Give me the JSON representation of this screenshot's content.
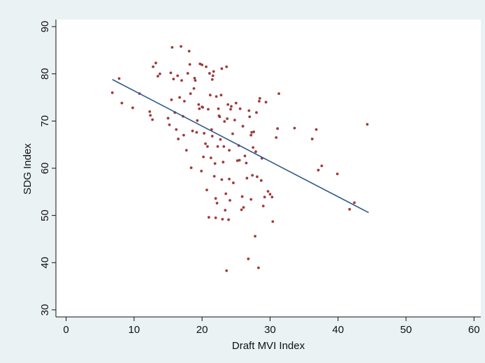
{
  "chart_data": {
    "type": "scatter",
    "title": "",
    "xlabel": "Draft MVI Index",
    "ylabel": "SDG Index",
    "xlim": [
      -1.5,
      61
    ],
    "ylim": [
      28.5,
      91.5
    ],
    "xticks": [
      0,
      10,
      20,
      30,
      40,
      50,
      60
    ],
    "yticks": [
      30,
      40,
      50,
      60,
      70,
      80,
      90
    ],
    "grid": false,
    "legend": "none",
    "colors": {
      "background": "#eaf2f3",
      "plot_area": "#ffffff",
      "points": "#a03a3a",
      "fit_line": "#2e5b8a"
    },
    "fit_line": {
      "x": [
        6.8,
        44.5
      ],
      "y": [
        78.8,
        50.6
      ]
    },
    "points": [
      [
        6.8,
        76.0
      ],
      [
        7.8,
        79.0
      ],
      [
        8.2,
        73.8
      ],
      [
        9.8,
        72.8
      ],
      [
        10.8,
        75.8
      ],
      [
        12.3,
        72.0
      ],
      [
        12.4,
        71.2
      ],
      [
        12.7,
        70.3
      ],
      [
        12.8,
        81.5
      ],
      [
        13.2,
        82.3
      ],
      [
        13.5,
        79.5
      ],
      [
        13.8,
        80.0
      ],
      [
        15.0,
        70.6
      ],
      [
        15.2,
        69.2
      ],
      [
        15.4,
        80.2
      ],
      [
        15.5,
        74.5
      ],
      [
        15.6,
        85.6
      ],
      [
        15.8,
        78.9
      ],
      [
        16.0,
        71.8
      ],
      [
        16.2,
        68.2
      ],
      [
        16.4,
        79.6
      ],
      [
        16.5,
        66.2
      ],
      [
        16.7,
        75.0
      ],
      [
        16.9,
        85.8
      ],
      [
        17.0,
        78.6
      ],
      [
        17.2,
        71.0
      ],
      [
        17.3,
        67.0
      ],
      [
        17.4,
        74.2
      ],
      [
        17.7,
        63.8
      ],
      [
        17.9,
        80.1
      ],
      [
        18.1,
        84.8
      ],
      [
        18.2,
        82.0
      ],
      [
        18.3,
        75.8
      ],
      [
        18.4,
        60.1
      ],
      [
        18.6,
        67.9
      ],
      [
        18.8,
        76.9
      ],
      [
        18.9,
        79.1
      ],
      [
        19.0,
        78.6
      ],
      [
        19.2,
        67.6
      ],
      [
        19.3,
        70.1
      ],
      [
        19.5,
        73.5
      ],
      [
        19.6,
        72.6
      ],
      [
        19.7,
        82.1
      ],
      [
        19.9,
        59.4
      ],
      [
        20.0,
        81.9
      ],
      [
        20.1,
        72.9
      ],
      [
        20.2,
        62.4
      ],
      [
        20.3,
        67.4
      ],
      [
        20.5,
        65.2
      ],
      [
        20.6,
        81.5
      ],
      [
        20.7,
        55.4
      ],
      [
        20.8,
        64.6
      ],
      [
        20.9,
        72.5
      ],
      [
        21.0,
        49.6
      ],
      [
        21.1,
        80.1
      ],
      [
        21.2,
        75.5
      ],
      [
        21.3,
        62.2
      ],
      [
        21.4,
        68.2
      ],
      [
        21.5,
        78.8
      ],
      [
        21.6,
        79.6
      ],
      [
        21.7,
        80.5
      ],
      [
        21.8,
        58.3
      ],
      [
        21.9,
        61.0
      ],
      [
        22.0,
        49.5
      ],
      [
        22.0,
        53.6
      ],
      [
        22.1,
        75.2
      ],
      [
        22.2,
        52.6
      ],
      [
        22.3,
        64.6
      ],
      [
        22.4,
        72.6
      ],
      [
        22.5,
        71.1
      ],
      [
        22.6,
        70.9
      ],
      [
        22.7,
        66.1
      ],
      [
        22.8,
        75.5
      ],
      [
        22.9,
        81.1
      ],
      [
        22.9,
        57.6
      ],
      [
        23.0,
        49.2
      ],
      [
        23.1,
        61.3
      ],
      [
        23.2,
        64.6
      ],
      [
        23.3,
        69.9
      ],
      [
        23.4,
        51.1
      ],
      [
        23.5,
        54.6
      ],
      [
        23.6,
        81.5
      ],
      [
        23.6,
        38.3
      ],
      [
        23.7,
        70.5
      ],
      [
        23.8,
        73.5
      ],
      [
        23.9,
        49.1
      ],
      [
        24.0,
        57.7
      ],
      [
        24.0,
        63.8
      ],
      [
        24.1,
        53.2
      ],
      [
        24.2,
        72.5
      ],
      [
        24.3,
        73.1
      ],
      [
        24.5,
        67.3
      ],
      [
        24.8,
        70.2
      ],
      [
        25.0,
        73.8
      ],
      [
        25.2,
        61.6
      ],
      [
        25.4,
        64.8
      ],
      [
        25.6,
        72.6
      ],
      [
        25.8,
        51.2
      ],
      [
        25.9,
        54.0
      ],
      [
        26.0,
        68.9
      ],
      [
        26.1,
        51.7
      ],
      [
        26.3,
        62.6
      ],
      [
        26.5,
        61.1
      ],
      [
        26.6,
        57.9
      ],
      [
        26.8,
        40.8
      ],
      [
        26.9,
        72.2
      ],
      [
        27.0,
        70.9
      ],
      [
        27.2,
        53.4
      ],
      [
        27.3,
        67.6
      ],
      [
        27.4,
        58.5
      ],
      [
        27.5,
        64.4
      ],
      [
        27.6,
        67.7
      ],
      [
        27.8,
        45.6
      ],
      [
        27.9,
        63.5
      ],
      [
        28.0,
        71.8
      ],
      [
        28.1,
        58.2
      ],
      [
        28.3,
        38.9
      ],
      [
        28.4,
        74.2
      ],
      [
        28.5,
        74.8
      ],
      [
        28.7,
        57.4
      ],
      [
        28.8,
        62.1
      ],
      [
        29.0,
        52.0
      ],
      [
        29.2,
        53.9
      ],
      [
        29.4,
        74.0
      ],
      [
        29.7,
        55.1
      ],
      [
        30.0,
        54.5
      ],
      [
        30.3,
        53.9
      ],
      [
        30.4,
        48.7
      ],
      [
        30.9,
        66.5
      ],
      [
        31.1,
        68.4
      ],
      [
        31.3,
        75.8
      ],
      [
        33.6,
        68.5
      ],
      [
        36.2,
        66.2
      ],
      [
        36.8,
        68.2
      ],
      [
        37.1,
        59.6
      ],
      [
        37.6,
        60.5
      ],
      [
        39.9,
        58.8
      ],
      [
        41.7,
        51.3
      ],
      [
        42.4,
        52.7
      ],
      [
        44.3,
        69.3
      ],
      [
        27.2,
        67.0
      ],
      [
        24.6,
        56.9
      ],
      [
        21.5,
        66.8
      ],
      [
        20.0,
        73.0
      ],
      [
        25.5,
        61.7
      ]
    ]
  }
}
